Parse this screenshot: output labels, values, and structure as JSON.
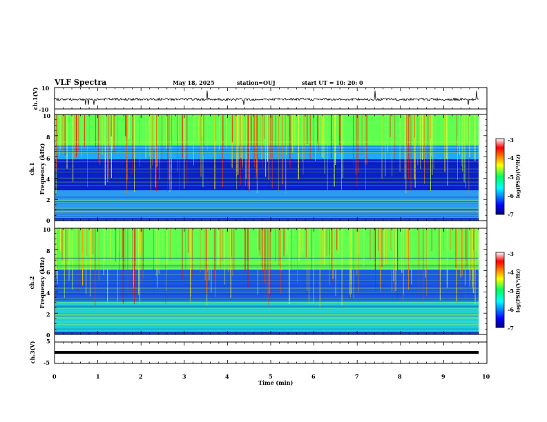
{
  "header": {
    "title": "VLF Spectra",
    "date": "May 18, 2025",
    "station": "station=OUJ",
    "start": "start  UT =   10: 20: 0"
  },
  "chart_data": [
    {
      "type": "line",
      "ylabel": "ch.1(V)",
      "ylim": [
        -10,
        10
      ],
      "yticks": [
        "10",
        "-10"
      ],
      "xlim": [
        0,
        10
      ]
    },
    {
      "type": "heatmap",
      "ylabel_top": "ch.1",
      "ylabel": "Frequency (kHz)",
      "ylim": [
        0,
        10
      ],
      "yticks": [
        "0",
        "2",
        "4",
        "6",
        "8",
        "10"
      ],
      "xlim": [
        0,
        10
      ],
      "colorbar": {
        "label": "log(PSD)(V²/Hz)",
        "range": [
          -7,
          -3
        ],
        "ticks": [
          "-3",
          "-4",
          "-5",
          "-6",
          "-7"
        ]
      }
    },
    {
      "type": "heatmap",
      "ylabel_top": "ch.2",
      "ylabel": "Frequency (kHz)",
      "ylim": [
        0,
        10
      ],
      "yticks": [
        "0",
        "2",
        "4",
        "6",
        "8",
        "10"
      ],
      "xlim": [
        0,
        10
      ],
      "colorbar": {
        "label": "log(PSD)(V²/Hz)",
        "range": [
          -7,
          -3
        ],
        "ticks": [
          "-3",
          "-4",
          "-5",
          "-6",
          "-7"
        ]
      }
    },
    {
      "type": "line",
      "ylabel": "ch.3(V)",
      "ylim": [
        -5,
        5
      ],
      "yticks": [
        "5",
        "0",
        "-5"
      ],
      "xlim": [
        0,
        10
      ],
      "xlabel": "Time (min)",
      "xticks": [
        "0",
        "1",
        "2",
        "3",
        "4",
        "5",
        "6",
        "7",
        "8",
        "9",
        "10"
      ]
    }
  ]
}
